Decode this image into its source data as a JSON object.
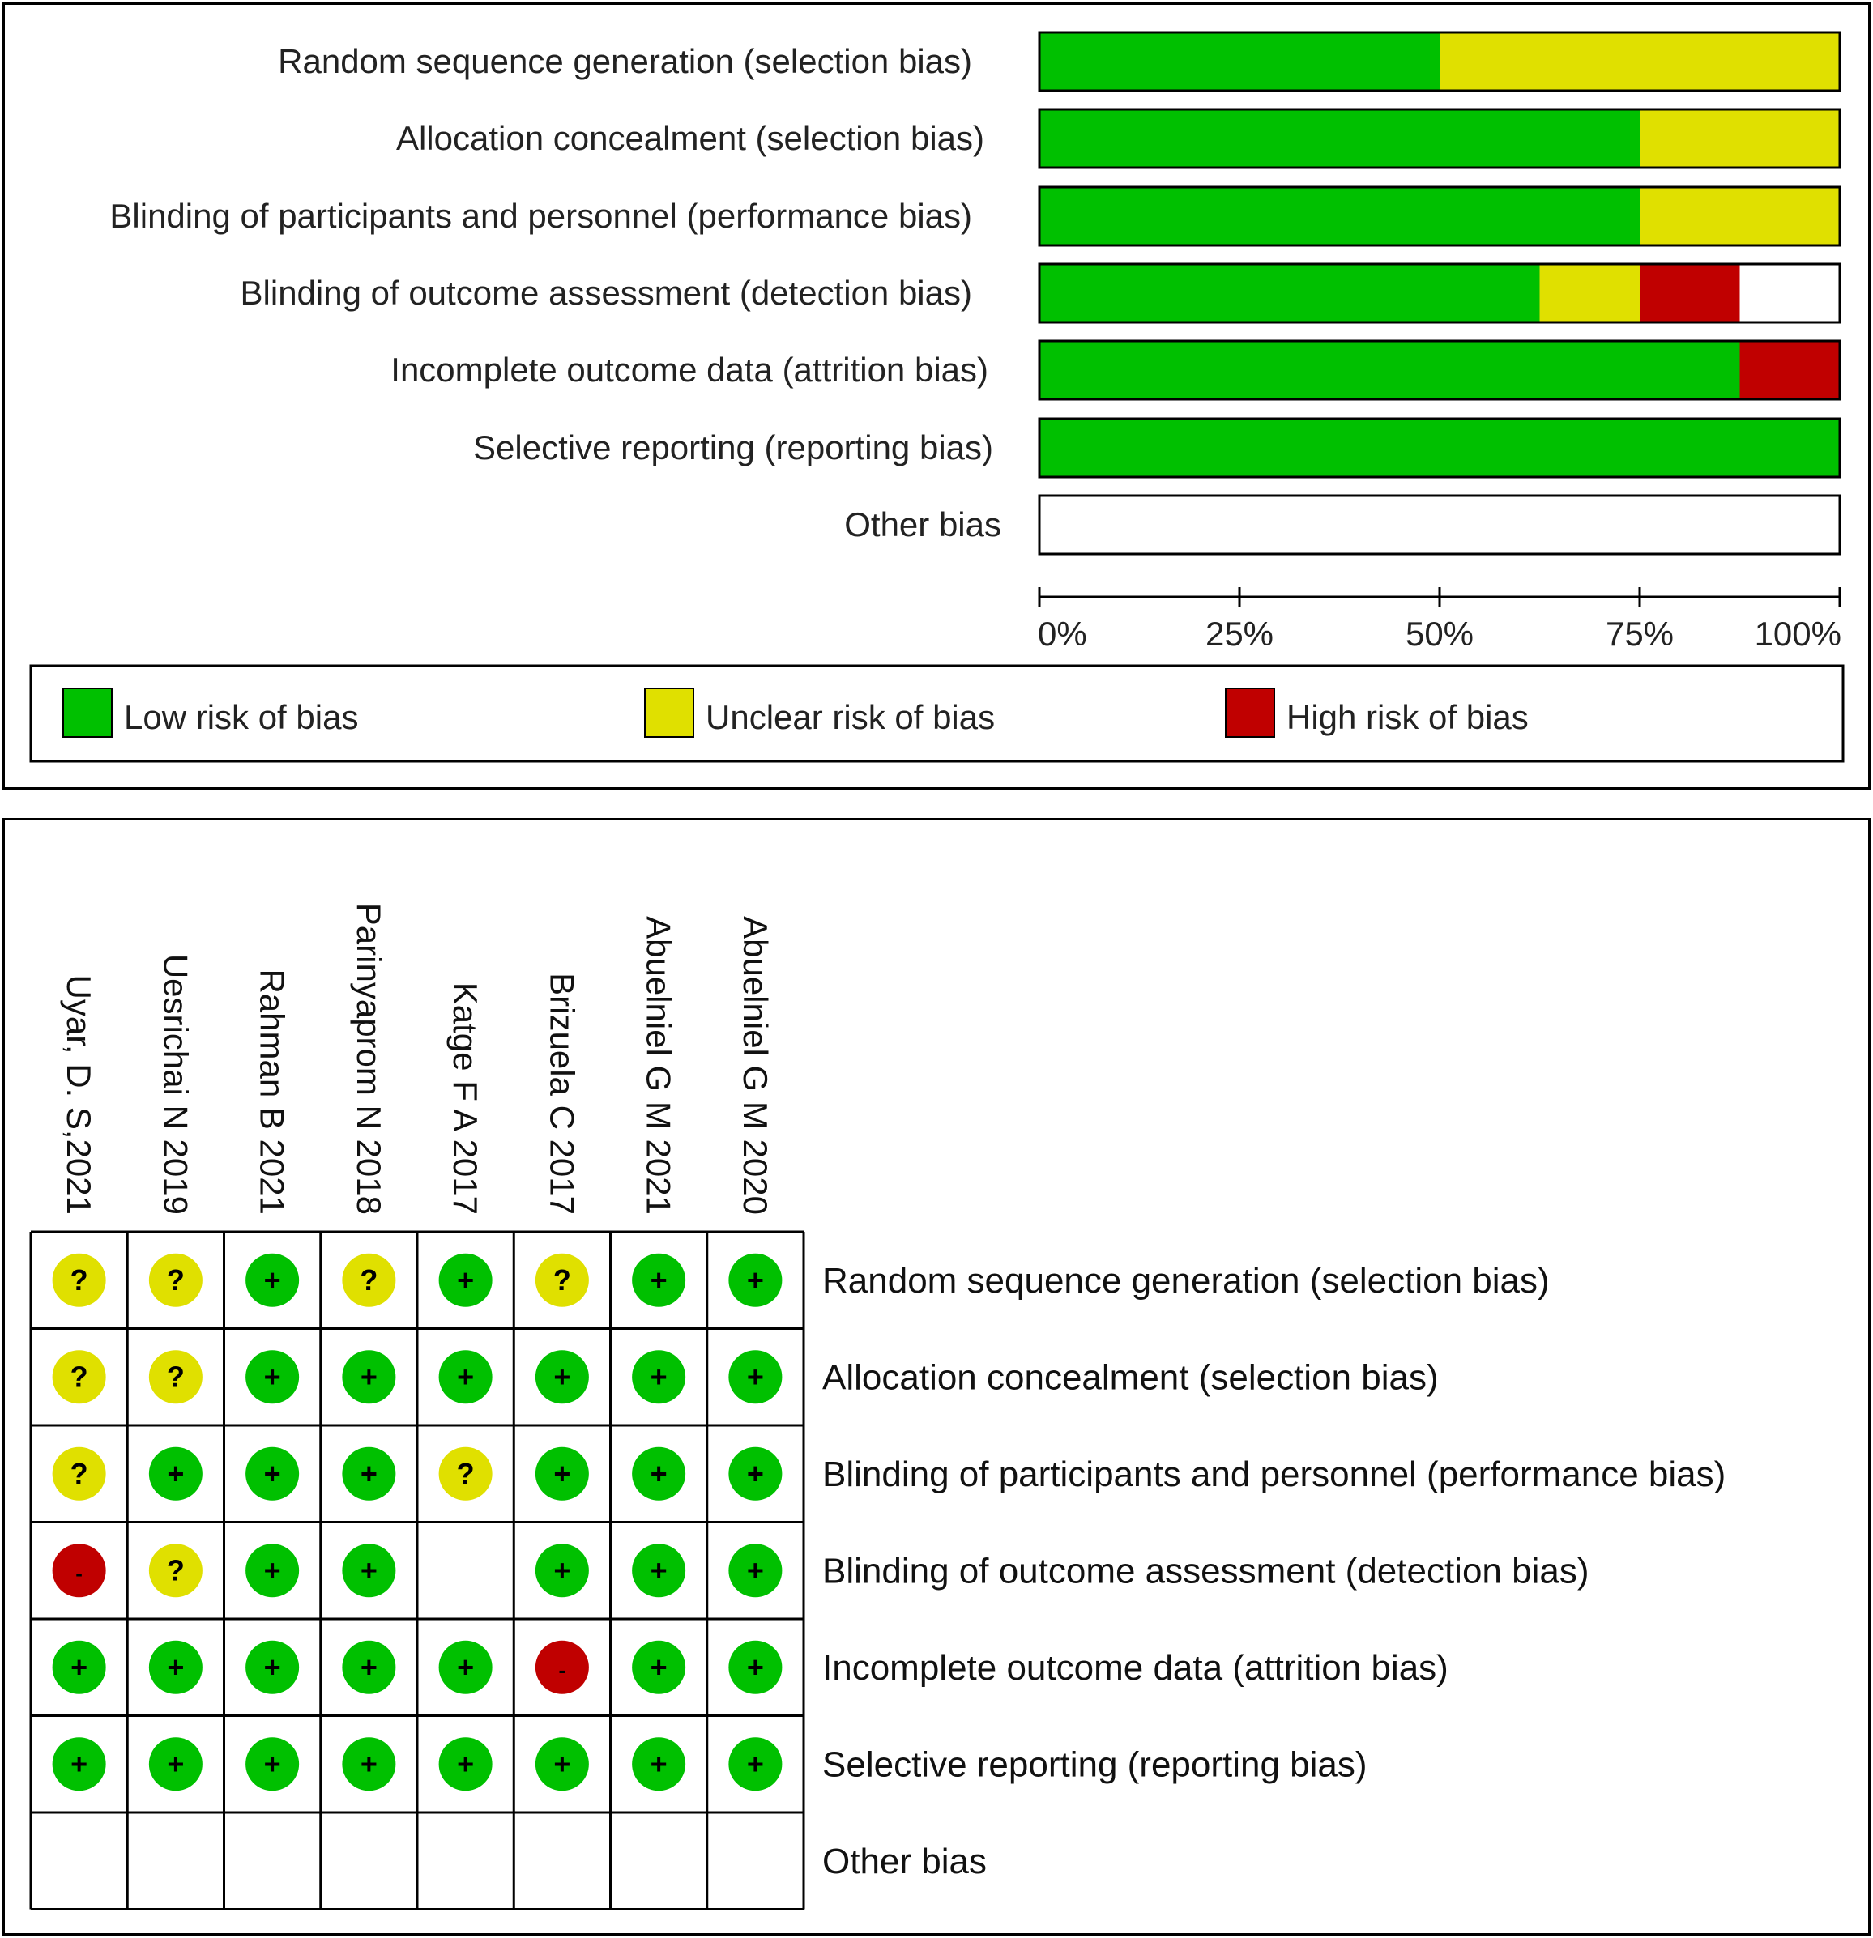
{
  "chart_data": [
    {
      "type": "bar",
      "orientation": "horizontal",
      "stacked": true,
      "categories": [
        "Random sequence generation (selection bias)",
        "Allocation concealment (selection bias)",
        "Blinding of participants and personnel (performance bias)",
        "Blinding of outcome assessment (detection bias)",
        "Incomplete outcome data (attrition bias)",
        "Selective reporting (reporting bias)",
        "Other bias"
      ],
      "series": [
        {
          "name": "Low risk of bias",
          "color": "#00c000",
          "values": [
            50,
            75,
            75,
            62.5,
            87.5,
            100,
            0
          ]
        },
        {
          "name": "Unclear risk of bias",
          "color": "#e0e000",
          "values": [
            50,
            25,
            25,
            12.5,
            0,
            0,
            0
          ]
        },
        {
          "name": "High risk of bias",
          "color": "#c00000",
          "values": [
            0,
            0,
            0,
            12.5,
            12.5,
            0,
            0
          ]
        }
      ],
      "xlim": [
        0,
        100
      ],
      "xticks": [
        "0%",
        "25%",
        "50%",
        "75%",
        "100%"
      ],
      "legend": [
        "Low risk of bias",
        "Unclear risk of bias",
        "High risk of bias"
      ],
      "legend_position": "bottom"
    },
    {
      "type": "table",
      "studies": [
        "Uyar, D. S,2021",
        "Uesrichai N 2019",
        "Rahman B 2021",
        "Parinyaprom N 2018",
        "Katge F A  2017",
        "Brizuela C 2017",
        "Abuelniel G M 2021",
        "Abuelniel  G  M 2020"
      ],
      "domains": [
        "Random sequence generation (selection bias)",
        "Allocation concealment (selection bias)",
        "Blinding of participants and personnel (performance bias)",
        "Blinding of outcome assessment (detection bias)",
        "Incomplete outcome data (attrition bias)",
        "Selective reporting (reporting bias)",
        "Other bias"
      ],
      "cells": [
        [
          "?",
          "?",
          "+",
          "?",
          "+",
          "?",
          "+",
          "+"
        ],
        [
          "?",
          "?",
          "+",
          "+",
          "+",
          "+",
          "+",
          "+"
        ],
        [
          "?",
          "+",
          "+",
          "+",
          "?",
          "+",
          "+",
          "+"
        ],
        [
          "-",
          "?",
          "+",
          "+",
          "",
          "+",
          "+",
          "+"
        ],
        [
          "+",
          "+",
          "+",
          "+",
          "+",
          "-",
          "+",
          "+"
        ],
        [
          "+",
          "+",
          "+",
          "+",
          "+",
          "+",
          "+",
          "+"
        ],
        [
          "",
          "",
          "",
          "",
          "",
          "",
          "",
          ""
        ]
      ],
      "symbol_colors": {
        "+": "#00c000",
        "?": "#e0e000",
        "-": "#c00000"
      }
    }
  ]
}
